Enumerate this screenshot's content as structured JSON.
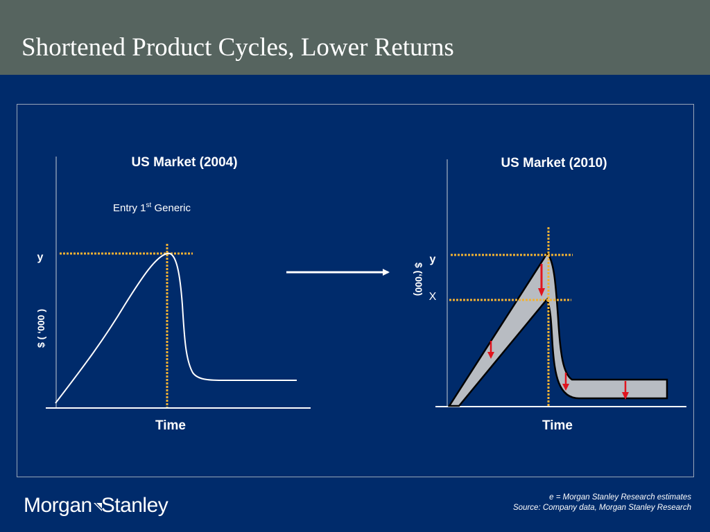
{
  "slide": {
    "title": "Shortened Product Cycles, Lower Returns"
  },
  "left_chart": {
    "title": "US Market (2004)",
    "annotation_main": "Entry 1",
    "annotation_sup": "st",
    "annotation_tail": " Generic",
    "y_marker": "y",
    "y_axis_label": "$ ( ‘000 )",
    "x_axis_label": "Time"
  },
  "right_chart": {
    "title": "US Market (2010)",
    "y_marker": "y",
    "x_marker": "X",
    "y_axis_label": "$ (‘000)",
    "x_axis_label": "Time"
  },
  "footer": {
    "brand": "Morgan Stanley",
    "brand_left": "Morgan",
    "brand_right": "Stanley",
    "note_1": "e = Morgan Stanley Research estimates",
    "note_2": "Source: Company data, Morgan Stanley Research"
  },
  "colors": {
    "background": "#002b6b",
    "title_bar": "#56645f",
    "guide_line": "#f2b233",
    "curve": "#ffffff",
    "band_fill": "#b8bcc2",
    "down_arrow": "#e0141e"
  }
}
